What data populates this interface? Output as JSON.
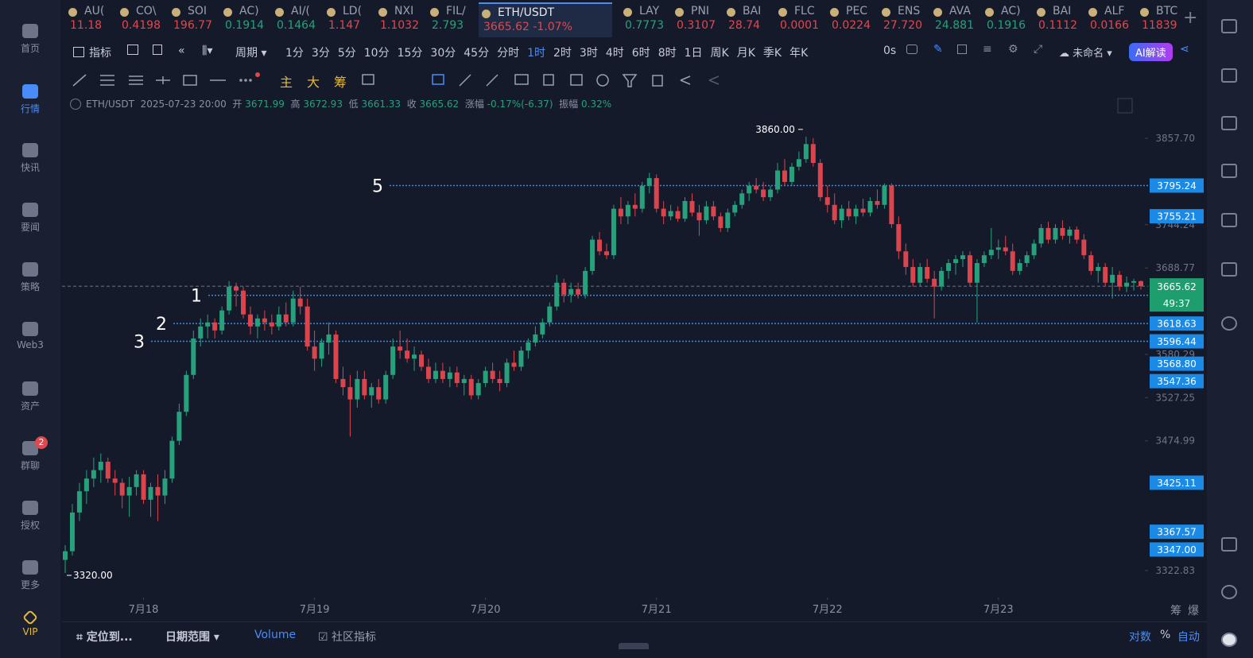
{
  "sidebar": [
    "首页",
    "行情",
    "快讯",
    "要闻",
    "策略",
    "Web3",
    "资产",
    "群聊",
    "授权",
    "更多",
    "VIP"
  ],
  "sidebar_badge": "2",
  "tickers": [
    {
      "name": "AU(",
      "price": "11.18",
      "up": false
    },
    {
      "name": "CO\\",
      "price": "0.4198",
      "up": false
    },
    {
      "name": "SOI",
      "price": "196.77",
      "up": false
    },
    {
      "name": "AC)",
      "price": "0.1914",
      "up": true
    },
    {
      "name": "AI/(",
      "price": "0.1464",
      "up": true
    },
    {
      "name": "LD(",
      "price": "1.147",
      "up": false
    },
    {
      "name": "NXI",
      "price": "1.1032",
      "up": false
    },
    {
      "name": "FIL/",
      "price": "2.793",
      "up": true
    },
    {
      "name": "ETH/USDT",
      "price": "3665.62",
      "change": "-1.07%",
      "up": false
    },
    {
      "name": "LAY",
      "price": "0.7773",
      "up": true
    },
    {
      "name": "PNI",
      "price": "0.3107",
      "up": false
    },
    {
      "name": "BAI",
      "price": "28.74",
      "up": false
    },
    {
      "name": "FLC",
      "price": "0.0001",
      "up": false
    },
    {
      "name": "PEC",
      "price": "0.0224",
      "up": false
    },
    {
      "name": "ENS",
      "price": "27.720",
      "up": false
    },
    {
      "name": "AVA",
      "price": "24.881",
      "up": true
    },
    {
      "name": "AC)",
      "price": "0.1916",
      "up": true
    },
    {
      "name": "BAI",
      "price": "0.1112",
      "up": false
    },
    {
      "name": "ALF",
      "price": "0.0166",
      "up": false
    },
    {
      "name": "BTC",
      "price": "11839",
      "up": false
    }
  ],
  "toolbar": {
    "indicator": "指标",
    "period": "周期",
    "intervals": [
      "1分",
      "3分",
      "5分",
      "10分",
      "15分",
      "30分",
      "45分",
      "分时",
      "1时",
      "2时",
      "3时",
      "4时",
      "6时",
      "8时",
      "1日",
      "周K",
      "月K",
      "季K",
      "年K"
    ],
    "active_interval": 8,
    "timer": "0s",
    "layout": "未命名",
    "ai": "AI解读"
  },
  "draw_tools": [
    "主",
    "大",
    "筹"
  ],
  "info": {
    "symbol": "ETH/USDT",
    "time": "2025-07-23 20:00",
    "open_label": "开",
    "high_label": "高",
    "low_label": "低",
    "close_label": "收",
    "change_label": "涨幅",
    "change": "-0.17%(-6.37)",
    "amp_label": "振幅",
    "amp": "0.32%"
  },
  "chart_data": {
    "type": "candlestick",
    "log_scale": true,
    "up_color": "#26a17b",
    "down_color": "#d9444d",
    "ylim": [
      3300,
      3880
    ],
    "yticks": [
      {
        "value": 3857.7,
        "label": "3857.70"
      },
      3744.24,
      3688.77,
      3580.29,
      3527.25,
      3474.99,
      3322.83
    ],
    "xlim": [
      0,
      151
    ],
    "xticks": [
      {
        "value": 11,
        "label": "7月18"
      },
      {
        "value": 35,
        "label": "7月19"
      },
      {
        "value": 59,
        "label": "7月20"
      },
      {
        "value": 83,
        "label": "7月21"
      },
      {
        "value": 107,
        "label": "7月22"
      },
      {
        "value": 131,
        "label": "7月23"
      }
    ],
    "levels": [
      {
        "name": "5",
        "value": 3795.24
      },
      {
        "name": "1",
        "value": 3654
      },
      {
        "name": "2",
        "value": 3618.63
      },
      {
        "name": "3",
        "value": 3596.44
      }
    ],
    "price_badges": [
      3795.24,
      3755.21,
      3618.63,
      3596.44,
      {
        "value": 3568.8,
        "label": "3568.80"
      },
      3547.36,
      3425.11,
      3367.57,
      {
        "value": 3347,
        "label": "3347.00"
      }
    ],
    "countdown": "49:37",
    "annotations": [
      {
        "label": "3860.00",
        "x": 104,
        "value": 3860
      },
      {
        "label": "3320.00",
        "x": 0,
        "value": 3320
      }
    ],
    "candles": [
      [
        3335,
        3352,
        3320,
        3345
      ],
      [
        3345,
        3400,
        3340,
        3390
      ],
      [
        3390,
        3425,
        3380,
        3415
      ],
      [
        3415,
        3440,
        3400,
        3430
      ],
      [
        3430,
        3455,
        3420,
        3440
      ],
      [
        3440,
        3460,
        3425,
        3450
      ],
      [
        3450,
        3455,
        3425,
        3430
      ],
      [
        3430,
        3440,
        3410,
        3425
      ],
      [
        3425,
        3430,
        3395,
        3410
      ],
      [
        3410,
        3432,
        3385,
        3420
      ],
      [
        3420,
        3440,
        3410,
        3435
      ],
      [
        3435,
        3440,
        3400,
        3405
      ],
      [
        3405,
        3425,
        3385,
        3420
      ],
      [
        3420,
        3435,
        3380,
        3410
      ],
      [
        3410,
        3440,
        3400,
        3430
      ],
      [
        3430,
        3480,
        3425,
        3475
      ],
      [
        3475,
        3520,
        3470,
        3510
      ],
      [
        3510,
        3560,
        3505,
        3555
      ],
      [
        3555,
        3610,
        3550,
        3600
      ],
      [
        3600,
        3625,
        3590,
        3615
      ],
      [
        3615,
        3630,
        3600,
        3620
      ],
      [
        3620,
        3625,
        3600,
        3610
      ],
      [
        3610,
        3640,
        3605,
        3635
      ],
      [
        3635,
        3672,
        3630,
        3665
      ],
      [
        3665,
        3670,
        3640,
        3660
      ],
      [
        3660,
        3665,
        3625,
        3630
      ],
      [
        3630,
        3640,
        3605,
        3615
      ],
      [
        3615,
        3630,
        3600,
        3625
      ],
      [
        3625,
        3635,
        3610,
        3620
      ],
      [
        3620,
        3630,
        3605,
        3615
      ],
      [
        3615,
        3640,
        3610,
        3630
      ],
      [
        3630,
        3645,
        3615,
        3620
      ],
      [
        3620,
        3660,
        3615,
        3650
      ],
      [
        3650,
        3665,
        3630,
        3640
      ],
      [
        3640,
        3650,
        3585,
        3590
      ],
      [
        3590,
        3610,
        3560,
        3575
      ],
      [
        3575,
        3600,
        3565,
        3595
      ],
      [
        3595,
        3620,
        3580,
        3605
      ],
      [
        3605,
        3610,
        3545,
        3550
      ],
      [
        3550,
        3565,
        3530,
        3540
      ],
      [
        3540,
        3555,
        3480,
        3525
      ],
      [
        3525,
        3560,
        3515,
        3550
      ],
      [
        3550,
        3560,
        3525,
        3530
      ],
      [
        3530,
        3545,
        3515,
        3540
      ],
      [
        3540,
        3550,
        3520,
        3525
      ],
      [
        3525,
        3560,
        3520,
        3555
      ],
      [
        3555,
        3600,
        3550,
        3590
      ],
      [
        3590,
        3610,
        3575,
        3585
      ],
      [
        3585,
        3600,
        3570,
        3575
      ],
      [
        3575,
        3590,
        3560,
        3580
      ],
      [
        3580,
        3585,
        3560,
        3565
      ],
      [
        3565,
        3575,
        3545,
        3550
      ],
      [
        3550,
        3570,
        3545,
        3560
      ],
      [
        3560,
        3570,
        3545,
        3550
      ],
      [
        3550,
        3565,
        3540,
        3558
      ],
      [
        3558,
        3565,
        3540,
        3545
      ],
      [
        3545,
        3555,
        3530,
        3550
      ],
      [
        3550,
        3555,
        3525,
        3530
      ],
      [
        3530,
        3550,
        3525,
        3545
      ],
      [
        3545,
        3565,
        3540,
        3560
      ],
      [
        3560,
        3570,
        3545,
        3550
      ],
      [
        3550,
        3560,
        3535,
        3545
      ],
      [
        3545,
        3575,
        3540,
        3570
      ],
      [
        3570,
        3585,
        3560,
        3565
      ],
      [
        3565,
        3590,
        3560,
        3585
      ],
      [
        3585,
        3600,
        3575,
        3595
      ],
      [
        3595,
        3615,
        3590,
        3605
      ],
      [
        3605,
        3625,
        3600,
        3620
      ],
      [
        3620,
        3645,
        3615,
        3640
      ],
      [
        3640,
        3680,
        3635,
        3670
      ],
      [
        3670,
        3675,
        3645,
        3655
      ],
      [
        3655,
        3670,
        3645,
        3662
      ],
      [
        3662,
        3670,
        3650,
        3655
      ],
      [
        3655,
        3690,
        3650,
        3685
      ],
      [
        3685,
        3730,
        3680,
        3725
      ],
      [
        3725,
        3735,
        3705,
        3710
      ],
      [
        3710,
        3720,
        3700,
        3705
      ],
      [
        3705,
        3770,
        3700,
        3765
      ],
      [
        3765,
        3780,
        3745,
        3755
      ],
      [
        3755,
        3775,
        3745,
        3770
      ],
      [
        3770,
        3785,
        3755,
        3765
      ],
      [
        3765,
        3800,
        3760,
        3795
      ],
      [
        3795,
        3812,
        3785,
        3805
      ],
      [
        3805,
        3810,
        3760,
        3765
      ],
      [
        3765,
        3775,
        3745,
        3755
      ],
      [
        3755,
        3770,
        3750,
        3762
      ],
      [
        3762,
        3768,
        3748,
        3752
      ],
      [
        3752,
        3780,
        3748,
        3775
      ],
      [
        3775,
        3785,
        3755,
        3760
      ],
      [
        3760,
        3770,
        3730,
        3750
      ],
      [
        3750,
        3775,
        3745,
        3768
      ],
      [
        3768,
        3775,
        3750,
        3755
      ],
      [
        3755,
        3760,
        3735,
        3740
      ],
      [
        3740,
        3765,
        3735,
        3760
      ],
      [
        3760,
        3775,
        3755,
        3770
      ],
      [
        3770,
        3790,
        3765,
        3785
      ],
      [
        3785,
        3800,
        3775,
        3795
      ],
      [
        3795,
        3805,
        3785,
        3790
      ],
      [
        3790,
        3800,
        3775,
        3780
      ],
      [
        3780,
        3795,
        3775,
        3790
      ],
      [
        3790,
        3825,
        3785,
        3815
      ],
      [
        3815,
        3830,
        3795,
        3800
      ],
      [
        3800,
        3825,
        3795,
        3820
      ],
      [
        3820,
        3840,
        3815,
        3830
      ],
      [
        3830,
        3860,
        3825,
        3850
      ],
      [
        3850,
        3858,
        3820,
        3825
      ],
      [
        3825,
        3830,
        3775,
        3780
      ],
      [
        3780,
        3795,
        3760,
        3770
      ],
      [
        3770,
        3785,
        3745,
        3750
      ],
      [
        3750,
        3770,
        3740,
        3765
      ],
      [
        3765,
        3775,
        3750,
        3755
      ],
      [
        3755,
        3770,
        3745,
        3765
      ],
      [
        3765,
        3778,
        3755,
        3760
      ],
      [
        3760,
        3780,
        3755,
        3775
      ],
      [
        3775,
        3790,
        3765,
        3770
      ],
      [
        3770,
        3798,
        3765,
        3795
      ],
      [
        3795,
        3798,
        3740,
        3745
      ],
      [
        3745,
        3755,
        3700,
        3710
      ],
      [
        3710,
        3720,
        3680,
        3690
      ],
      [
        3690,
        3700,
        3665,
        3670
      ],
      [
        3670,
        3695,
        3665,
        3690
      ],
      [
        3690,
        3700,
        3670,
        3675
      ],
      [
        3675,
        3685,
        3625,
        3665
      ],
      [
        3665,
        3690,
        3660,
        3685
      ],
      [
        3685,
        3700,
        3675,
        3695
      ],
      [
        3695,
        3705,
        3680,
        3700
      ],
      [
        3700,
        3710,
        3690,
        3705
      ],
      [
        3705,
        3710,
        3665,
        3670
      ],
      [
        3670,
        3700,
        3620,
        3695
      ],
      [
        3695,
        3710,
        3690,
        3705
      ],
      [
        3705,
        3740,
        3700,
        3712
      ],
      [
        3712,
        3725,
        3700,
        3715
      ],
      [
        3715,
        3730,
        3705,
        3710
      ],
      [
        3710,
        3720,
        3680,
        3685
      ],
      [
        3685,
        3700,
        3680,
        3695
      ],
      [
        3695,
        3710,
        3690,
        3705
      ],
      [
        3705,
        3725,
        3700,
        3720
      ],
      [
        3720,
        3745,
        3715,
        3740
      ],
      [
        3740,
        3748,
        3720,
        3725
      ],
      [
        3725,
        3745,
        3720,
        3740
      ],
      [
        3740,
        3750,
        3725,
        3730
      ],
      [
        3730,
        3742,
        3720,
        3738
      ],
      [
        3738,
        3742,
        3720,
        3725
      ],
      [
        3725,
        3732,
        3700,
        3705
      ],
      [
        3705,
        3710,
        3680,
        3685
      ],
      [
        3685,
        3695,
        3670,
        3690
      ],
      [
        3690,
        3695,
        3665,
        3670
      ],
      [
        3670,
        3690,
        3650,
        3680
      ],
      [
        3680,
        3685,
        3660,
        3665
      ],
      [
        3665,
        3678,
        3658,
        3670
      ],
      [
        3670,
        3675,
        3660,
        3671.99
      ],
      [
        3671.99,
        3672.93,
        3661.33,
        3665.62
      ]
    ]
  },
  "bottom": {
    "locate": "定位到...",
    "range": "日期范围",
    "volume": "Volume",
    "community": "社区指标",
    "log": "对数",
    "pct": "%",
    "auto": "自动",
    "axis_buttons": [
      "筹",
      "爆"
    ]
  }
}
